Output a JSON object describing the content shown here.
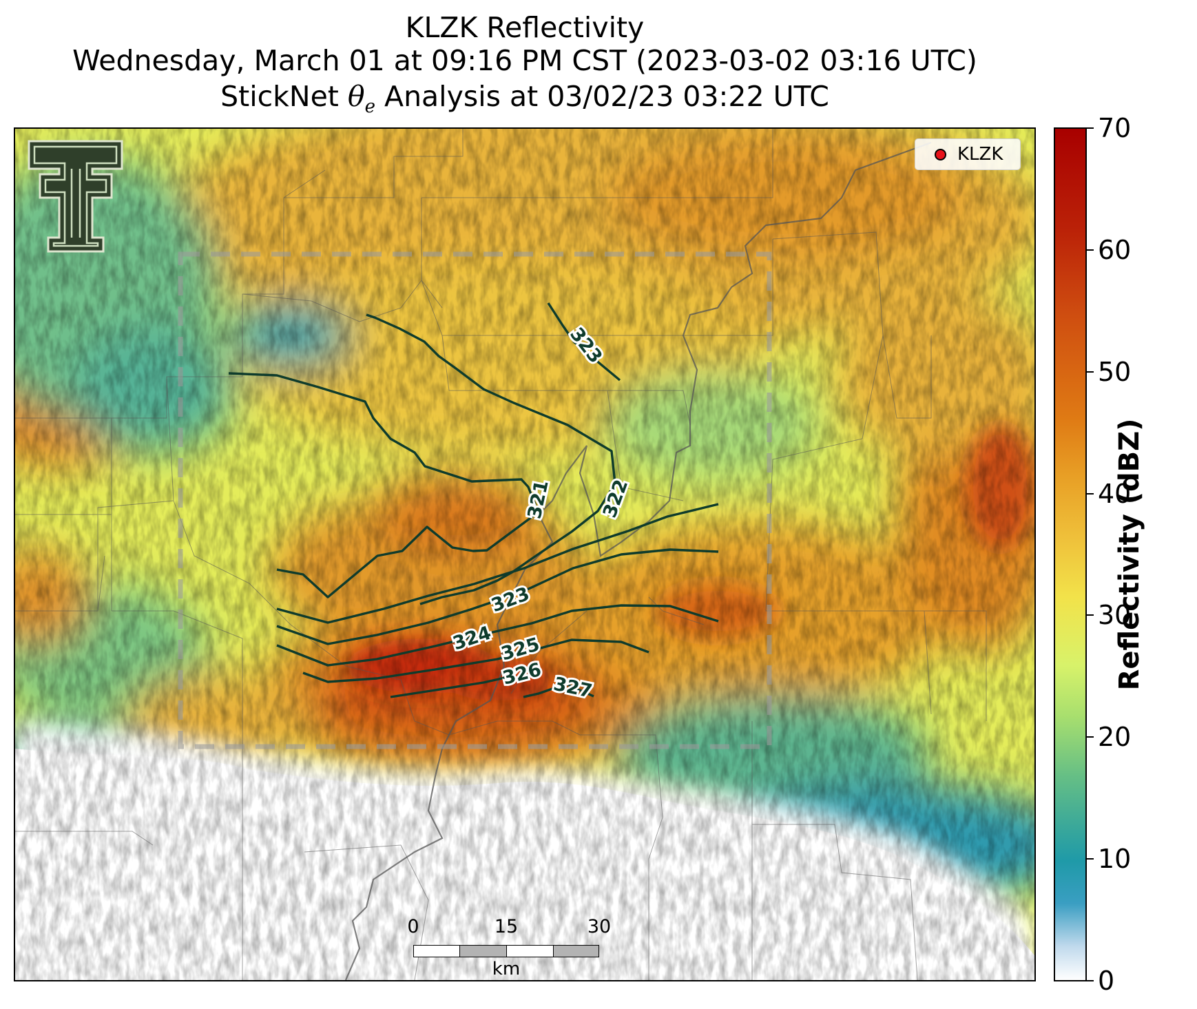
{
  "title": {
    "line1": "KLZK Reflectivity",
    "line2": "Wednesday, March 01 at 09:16 PM CST (2023-03-02 03:16 UTC)",
    "line3_pre": "StickNet ",
    "line3_theta": "θ",
    "line3_sub": "e",
    "line3_post": " Analysis at 03/02/23 03:22 UTC"
  },
  "legend": {
    "label": "KLZK",
    "marker_color": "#e8121a"
  },
  "scalebar": {
    "ticks": [
      "0",
      "15",
      "30"
    ],
    "unit": "km"
  },
  "colorbar": {
    "label": "Reflectivity (dBZ)",
    "ticks": [
      "0",
      "10",
      "20",
      "30",
      "40",
      "50",
      "60",
      "70"
    ],
    "range": [
      0,
      70
    ]
  },
  "contours": {
    "line_color": "#0e3b2c",
    "labels": [
      "321",
      "322",
      "323",
      "323",
      "324",
      "325",
      "326",
      "327"
    ]
  },
  "logo": {
    "name": "Texas Tech double-T logo"
  }
}
